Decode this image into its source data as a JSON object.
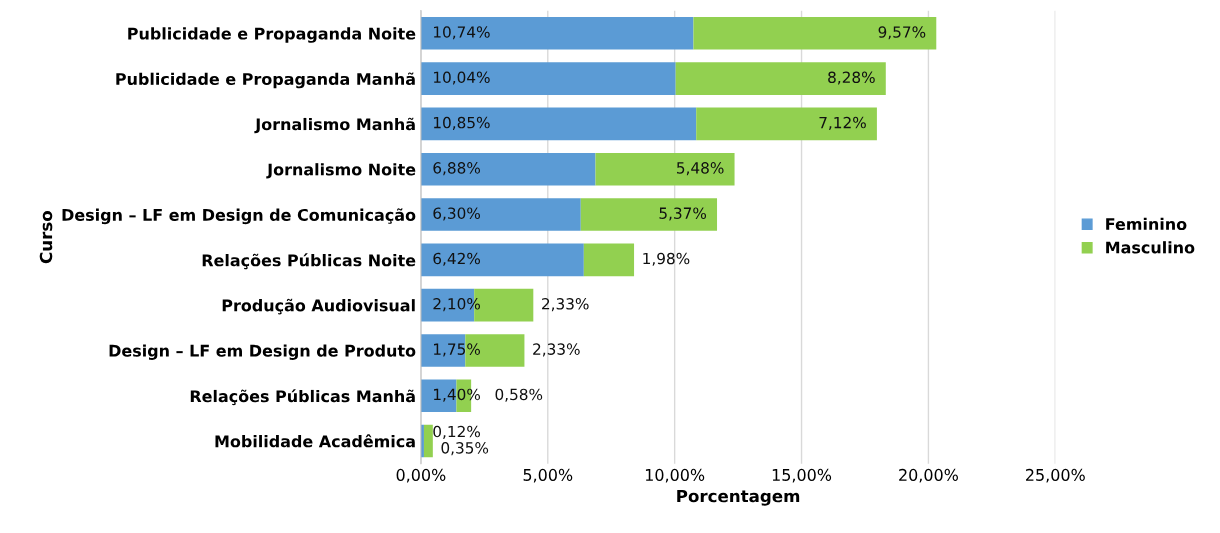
{
  "chart_data": {
    "type": "bar",
    "orientation": "horizontal",
    "stacked": true,
    "xlabel": "Porcentagem",
    "ylabel": "Curso",
    "categories": [
      "Publicidade e Propaganda Noite",
      "Publicidade e Propaganda Manhã",
      "Jornalismo Manhã",
      "Jornalismo Noite",
      "Design – LF em Design de Comunicação",
      "Relações Públicas Noite",
      "Produção Audiovisual",
      "Design – LF em Design de Produto",
      "Relações Públicas Manhã",
      "Mobilidade Acadêmica"
    ],
    "series": [
      {
        "name": "Feminino",
        "color": "#5b9bd5",
        "values": [
          10.74,
          10.04,
          10.85,
          6.88,
          6.3,
          6.42,
          2.1,
          1.75,
          1.4,
          0.12
        ],
        "value_labels": [
          "10,74%",
          "10,04%",
          "10,85%",
          "6,88%",
          "6,30%",
          "6,42%",
          "2,10%",
          "1,75%",
          "1,40%",
          "0,12%"
        ]
      },
      {
        "name": "Masculino",
        "color": "#92d050",
        "values": [
          9.57,
          8.28,
          7.12,
          5.48,
          5.37,
          1.98,
          2.33,
          2.33,
          0.58,
          0.35
        ],
        "value_labels": [
          "9,57%",
          "8,28%",
          "7,12%",
          "5,48%",
          "5,37%",
          "1,98%",
          "2,33%",
          "2,33%",
          "0,58%",
          "0,35%"
        ]
      }
    ],
    "xlim": [
      0,
      25
    ],
    "xticks": [
      {
        "value": 0,
        "label": "0,00%"
      },
      {
        "value": 5,
        "label": "5,00%"
      },
      {
        "value": 10,
        "label": "10,00%"
      },
      {
        "value": 15,
        "label": "15,00%"
      },
      {
        "value": 20,
        "label": "20,00%"
      },
      {
        "value": 25,
        "label": "25,00%"
      }
    ],
    "grid": "x",
    "legend": "right"
  }
}
